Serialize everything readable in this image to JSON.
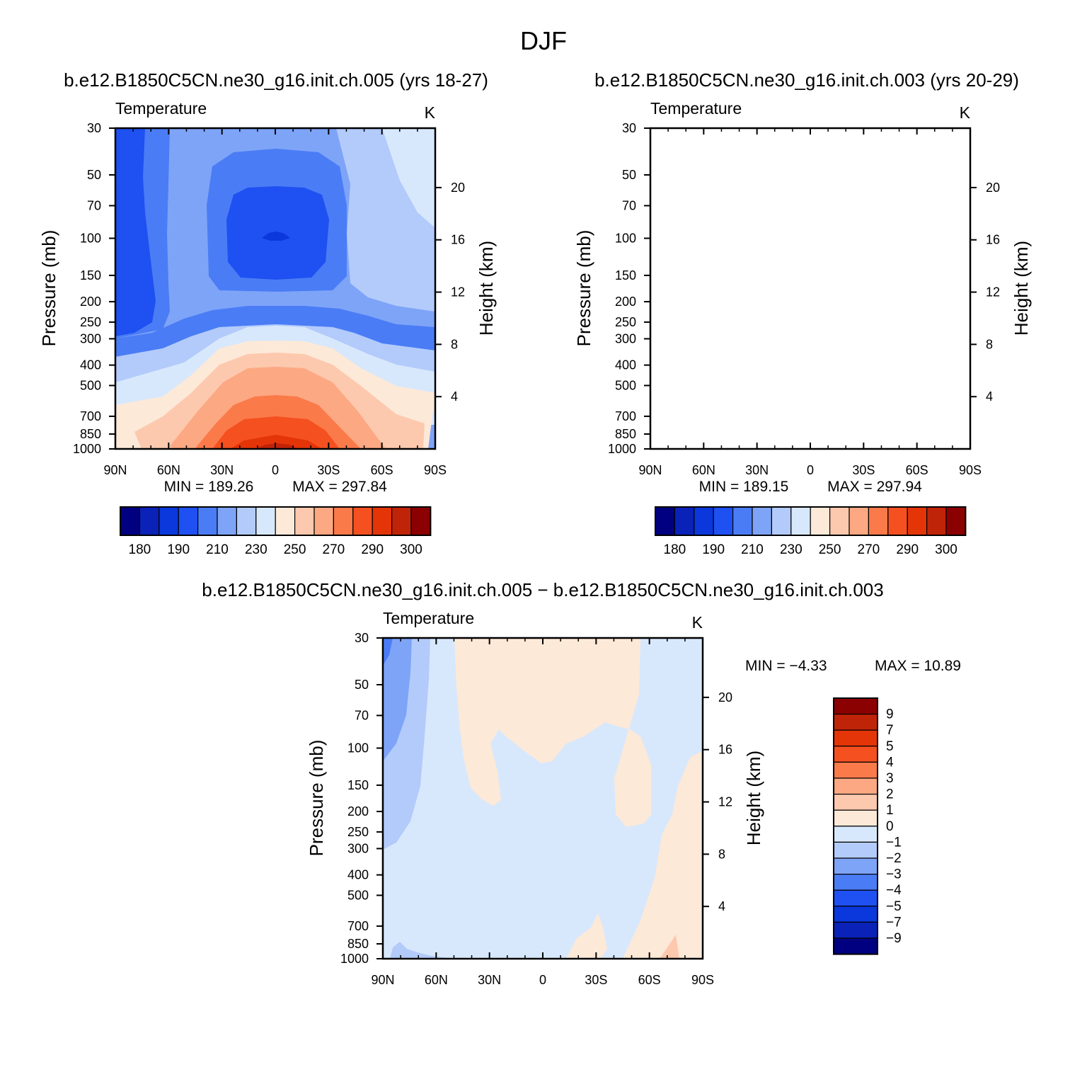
{
  "page_title": "DJF",
  "colors": {
    "temp_scale": [
      "#000080",
      "#0a22b8",
      "#0a38dc",
      "#1e50f2",
      "#4a7cf5",
      "#7ea4f8",
      "#b3cbfb",
      "#d8e8fc",
      "#fde9d8",
      "#fdc9ae",
      "#fca882",
      "#fb7a4a",
      "#f55020",
      "#e43508",
      "#c02408",
      "#8b0000"
    ],
    "diff_scale": [
      "#000080",
      "#0a22b8",
      "#0a38dc",
      "#1e50f2",
      "#4a7cf5",
      "#7ea4f8",
      "#b3cbfb",
      "#d8e8fc",
      "#fde9d8",
      "#fdc9ae",
      "#fca882",
      "#fb7a4a",
      "#f55020",
      "#e43508",
      "#c02408",
      "#8b0000"
    ]
  },
  "chart_data": [
    {
      "type": "contour",
      "title": "b.e12.B1850C5CN.ne30_g16.init.ch.005 (yrs 18-27)",
      "left_label": "Temperature",
      "right_label": "K",
      "ylabel": "Pressure (mb)",
      "y2label": "Height (km)",
      "x_ticks": [
        "90N",
        "60N",
        "30N",
        "0",
        "30S",
        "60S",
        "90S"
      ],
      "y_ticks": [
        30,
        50,
        70,
        100,
        150,
        200,
        250,
        300,
        400,
        500,
        700,
        850,
        1000
      ],
      "y2_ticks": [
        20,
        16,
        12,
        8,
        4
      ],
      "ylim": [
        30,
        1000
      ],
      "min_label": "MIN = 189.26",
      "max_label": "MAX = 297.84",
      "min": 189.26,
      "max": 297.84,
      "colorbar_levels": [
        180,
        190,
        210,
        230,
        250,
        270,
        290,
        300
      ]
    },
    {
      "type": "contour",
      "title": "b.e12.B1850C5CN.ne30_g16.init.ch.003 (yrs 20-29)",
      "left_label": "Temperature",
      "right_label": "K",
      "ylabel": "Pressure (mb)",
      "y2label": "Height (km)",
      "x_ticks": [
        "90N",
        "60N",
        "30N",
        "0",
        "30S",
        "60S",
        "90S"
      ],
      "y_ticks": [
        30,
        50,
        70,
        100,
        150,
        200,
        250,
        300,
        400,
        500,
        700,
        850,
        1000
      ],
      "y2_ticks": [
        20,
        16,
        12,
        8,
        4
      ],
      "ylim": [
        30,
        1000
      ],
      "min_label": "MIN = 189.15",
      "max_label": "MAX = 297.94",
      "min": 189.15,
      "max": 297.94,
      "colorbar_levels": [
        180,
        190,
        210,
        230,
        250,
        270,
        290,
        300
      ]
    },
    {
      "type": "contour",
      "title": "b.e12.B1850C5CN.ne30_g16.init.ch.005 − b.e12.B1850C5CN.ne30_g16.init.ch.003",
      "left_label": "Temperature",
      "right_label": "K",
      "ylabel": "Pressure (mb)",
      "y2label": "Height (km)",
      "x_ticks": [
        "90N",
        "60N",
        "30N",
        "0",
        "30S",
        "60S",
        "90S"
      ],
      "y_ticks": [
        30,
        50,
        70,
        100,
        150,
        200,
        250,
        300,
        400,
        500,
        700,
        850,
        1000
      ],
      "y2_ticks": [
        20,
        16,
        12,
        8,
        4
      ],
      "ylim": [
        30,
        1000
      ],
      "min_label": "MIN =   −4.33",
      "max_label": "MAX =   10.89",
      "min": -4.33,
      "max": 10.89,
      "colorbar_levels": [
        "9",
        "7",
        "5",
        "4",
        "3",
        "2",
        "1",
        "0",
        "−1",
        "−2",
        "−3",
        "−4",
        "−5",
        "−7",
        "−9"
      ]
    }
  ]
}
